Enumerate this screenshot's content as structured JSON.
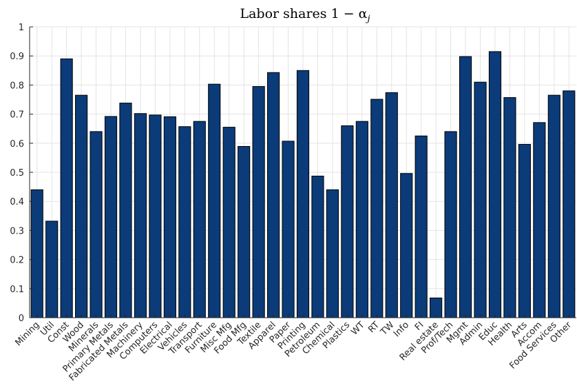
{
  "chart_data": {
    "type": "bar",
    "title": "Labor shares 1 − α",
    "title_subscript": "j",
    "xlabel": "",
    "ylabel": "",
    "ylim": [
      0,
      1
    ],
    "yticks": [
      "0",
      "0.1",
      "0.2",
      "0.3",
      "0.4",
      "0.5",
      "0.6",
      "0.7",
      "0.8",
      "0.9",
      "1"
    ],
    "grid": true,
    "bar_color": "#0b3b78",
    "categories": [
      "Mining",
      "Util",
      "Const",
      "Wood",
      "Minerals",
      "Primary Metals",
      "Fabricated Metals",
      "Machinery",
      "Computers",
      "Electrical",
      "Vehicles",
      "Transport",
      "Furniture",
      "Misc Mfg",
      "Food Mfg",
      "Textile",
      "Apparel",
      "Paper",
      "Printing",
      "Petroleum",
      "Chemical",
      "Plastics",
      "WT",
      "RT",
      "TW",
      "Info",
      "FI",
      "Real estate",
      "Prof/Tech",
      "Mgmt",
      "Admin",
      "Educ",
      "Health",
      "Arts",
      "Accom",
      "Food Services",
      "Other"
    ],
    "values": [
      0.44,
      0.332,
      0.89,
      0.765,
      0.64,
      0.692,
      0.738,
      0.702,
      0.697,
      0.691,
      0.657,
      0.675,
      0.803,
      0.655,
      0.589,
      0.795,
      0.843,
      0.607,
      0.85,
      0.487,
      0.44,
      0.66,
      0.675,
      0.751,
      0.774,
      0.496,
      0.625,
      0.068,
      0.64,
      0.898,
      0.81,
      0.915,
      0.757,
      0.596,
      0.671,
      0.765,
      0.78
    ]
  }
}
